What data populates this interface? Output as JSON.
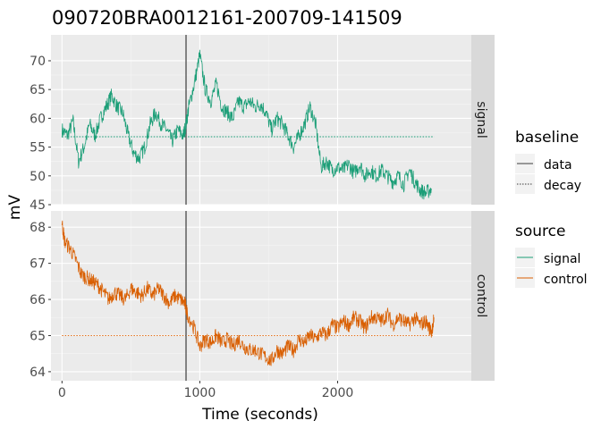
{
  "chart_data": {
    "type": "line",
    "title": "090720BRA0012161-200709-141509",
    "xlabel": "Time (seconds)",
    "ylabel": "mV",
    "x_ticks": [
      "0",
      "1000",
      "2000"
    ],
    "xlim": [
      -80,
      2970
    ],
    "vline_x": 900,
    "panels": [
      {
        "strip": "signal",
        "ylim": [
          45.0,
          74.5
        ],
        "y_ticks": [
          "45",
          "50",
          "55",
          "60",
          "65",
          "70"
        ],
        "y_tick_values": [
          45,
          50,
          55,
          60,
          65,
          70
        ],
        "decay_baseline": 56.8,
        "series_name": "signal",
        "color": "#1b9e77",
        "points": [
          [
            0,
            58
          ],
          [
            40,
            57
          ],
          [
            80,
            59.5
          ],
          [
            120,
            52.5
          ],
          [
            160,
            55
          ],
          [
            200,
            59
          ],
          [
            240,
            57
          ],
          [
            280,
            60
          ],
          [
            320,
            62
          ],
          [
            360,
            64
          ],
          [
            400,
            62
          ],
          [
            440,
            61
          ],
          [
            480,
            57
          ],
          [
            520,
            54
          ],
          [
            560,
            53
          ],
          [
            600,
            55
          ],
          [
            640,
            59
          ],
          [
            680,
            61
          ],
          [
            720,
            59
          ],
          [
            760,
            58
          ],
          [
            800,
            56
          ],
          [
            840,
            58
          ],
          [
            880,
            57
          ],
          [
            900,
            59
          ],
          [
            920,
            62
          ],
          [
            960,
            66
          ],
          [
            1000,
            71
          ],
          [
            1040,
            65
          ],
          [
            1080,
            63
          ],
          [
            1120,
            66
          ],
          [
            1160,
            62
          ],
          [
            1200,
            61
          ],
          [
            1240,
            60
          ],
          [
            1280,
            63
          ],
          [
            1320,
            62
          ],
          [
            1360,
            63
          ],
          [
            1400,
            62
          ],
          [
            1440,
            62.5
          ],
          [
            1480,
            61
          ],
          [
            1520,
            58
          ],
          [
            1560,
            60
          ],
          [
            1600,
            59
          ],
          [
            1640,
            57
          ],
          [
            1680,
            55
          ],
          [
            1720,
            57
          ],
          [
            1760,
            59
          ],
          [
            1800,
            62
          ],
          [
            1840,
            59
          ],
          [
            1880,
            51.5
          ],
          [
            1920,
            52.5
          ],
          [
            1960,
            51
          ],
          [
            2000,
            51.5
          ],
          [
            2040,
            51
          ],
          [
            2080,
            52
          ],
          [
            2120,
            50.5
          ],
          [
            2160,
            52
          ],
          [
            2200,
            50
          ],
          [
            2240,
            51
          ],
          [
            2280,
            50
          ],
          [
            2320,
            51
          ],
          [
            2360,
            50
          ],
          [
            2400,
            49
          ],
          [
            2440,
            50
          ],
          [
            2480,
            48.5
          ],
          [
            2520,
            51
          ],
          [
            2560,
            49
          ],
          [
            2600,
            47.5
          ],
          [
            2640,
            47
          ],
          [
            2680,
            47.8
          ]
        ]
      },
      {
        "strip": "control",
        "ylim": [
          63.75,
          68.45
        ],
        "y_ticks": [
          "64",
          "65",
          "66",
          "67",
          "68"
        ],
        "y_tick_values": [
          64,
          65,
          66,
          67,
          68
        ],
        "decay_baseline": 65.0,
        "series_name": "control",
        "color": "#d95f02",
        "points": [
          [
            0,
            68.1
          ],
          [
            20,
            67.6
          ],
          [
            60,
            67.4
          ],
          [
            100,
            67.1
          ],
          [
            140,
            66.7
          ],
          [
            180,
            66.6
          ],
          [
            220,
            66.5
          ],
          [
            260,
            66.4
          ],
          [
            300,
            66.2
          ],
          [
            340,
            66.0
          ],
          [
            380,
            66.2
          ],
          [
            420,
            66.1
          ],
          [
            460,
            66.0
          ],
          [
            500,
            66.3
          ],
          [
            540,
            66.2
          ],
          [
            580,
            66.1
          ],
          [
            620,
            66.3
          ],
          [
            660,
            66.1
          ],
          [
            700,
            66.3
          ],
          [
            740,
            66.1
          ],
          [
            780,
            65.9
          ],
          [
            820,
            66.1
          ],
          [
            860,
            66.0
          ],
          [
            890,
            65.9
          ],
          [
            910,
            65.6
          ],
          [
            960,
            65.2
          ],
          [
            1000,
            64.7
          ],
          [
            1040,
            64.9
          ],
          [
            1080,
            64.8
          ],
          [
            1120,
            65.0
          ],
          [
            1160,
            64.8
          ],
          [
            1200,
            64.9
          ],
          [
            1240,
            64.7
          ],
          [
            1280,
            64.9
          ],
          [
            1320,
            64.7
          ],
          [
            1360,
            64.6
          ],
          [
            1400,
            64.6
          ],
          [
            1440,
            64.5
          ],
          [
            1480,
            64.4
          ],
          [
            1520,
            64.3
          ],
          [
            1560,
            64.6
          ],
          [
            1600,
            64.5
          ],
          [
            1640,
            64.7
          ],
          [
            1680,
            64.6
          ],
          [
            1720,
            64.9
          ],
          [
            1760,
            64.8
          ],
          [
            1800,
            65.0
          ],
          [
            1840,
            64.9
          ],
          [
            1880,
            65.1
          ],
          [
            1920,
            65.0
          ],
          [
            1960,
            65.3
          ],
          [
            2000,
            65.2
          ],
          [
            2040,
            65.4
          ],
          [
            2080,
            65.3
          ],
          [
            2120,
            65.5
          ],
          [
            2160,
            65.4
          ],
          [
            2200,
            65.2
          ],
          [
            2240,
            65.5
          ],
          [
            2280,
            65.5
          ],
          [
            2320,
            65.4
          ],
          [
            2360,
            65.6
          ],
          [
            2400,
            65.3
          ],
          [
            2440,
            65.5
          ],
          [
            2480,
            65.4
          ],
          [
            2520,
            65.3
          ],
          [
            2560,
            65.5
          ],
          [
            2600,
            65.3
          ],
          [
            2640,
            65.4
          ],
          [
            2680,
            65.1
          ],
          [
            2700,
            65.5
          ]
        ]
      }
    ],
    "legends": [
      {
        "title": "baseline",
        "entries": [
          "data",
          "decay"
        ]
      },
      {
        "title": "source",
        "entries": [
          "signal",
          "control"
        ]
      }
    ]
  }
}
